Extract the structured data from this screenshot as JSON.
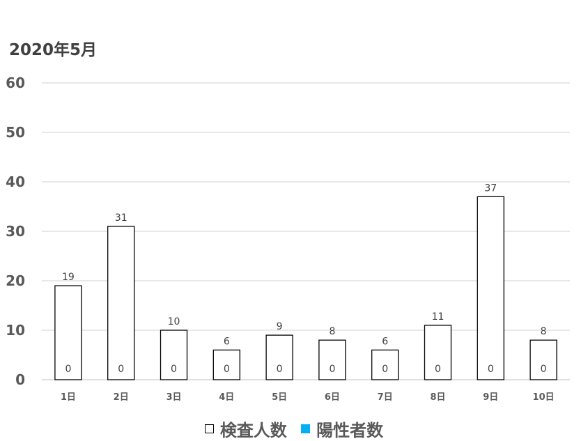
{
  "chart_data": {
    "type": "bar",
    "title": "2020年5月",
    "categories": [
      "1日",
      "2日",
      "3日",
      "4日",
      "5日",
      "6日",
      "7日",
      "8日",
      "9日",
      "10日"
    ],
    "series": [
      {
        "name": "検査人数",
        "values": [
          19,
          31,
          10,
          6,
          9,
          8,
          6,
          11,
          37,
          8
        ],
        "color": "#ffffff",
        "stroke": "#000000"
      },
      {
        "name": "陽性者数",
        "values": [
          0,
          0,
          0,
          0,
          0,
          0,
          0,
          0,
          0,
          0
        ],
        "color": "#00b0f0"
      }
    ],
    "yticks": [
      "0",
      "10",
      "20",
      "30",
      "40",
      "50",
      "60"
    ],
    "ylim": [
      0,
      60
    ],
    "grid": true,
    "legend": "bottom"
  }
}
